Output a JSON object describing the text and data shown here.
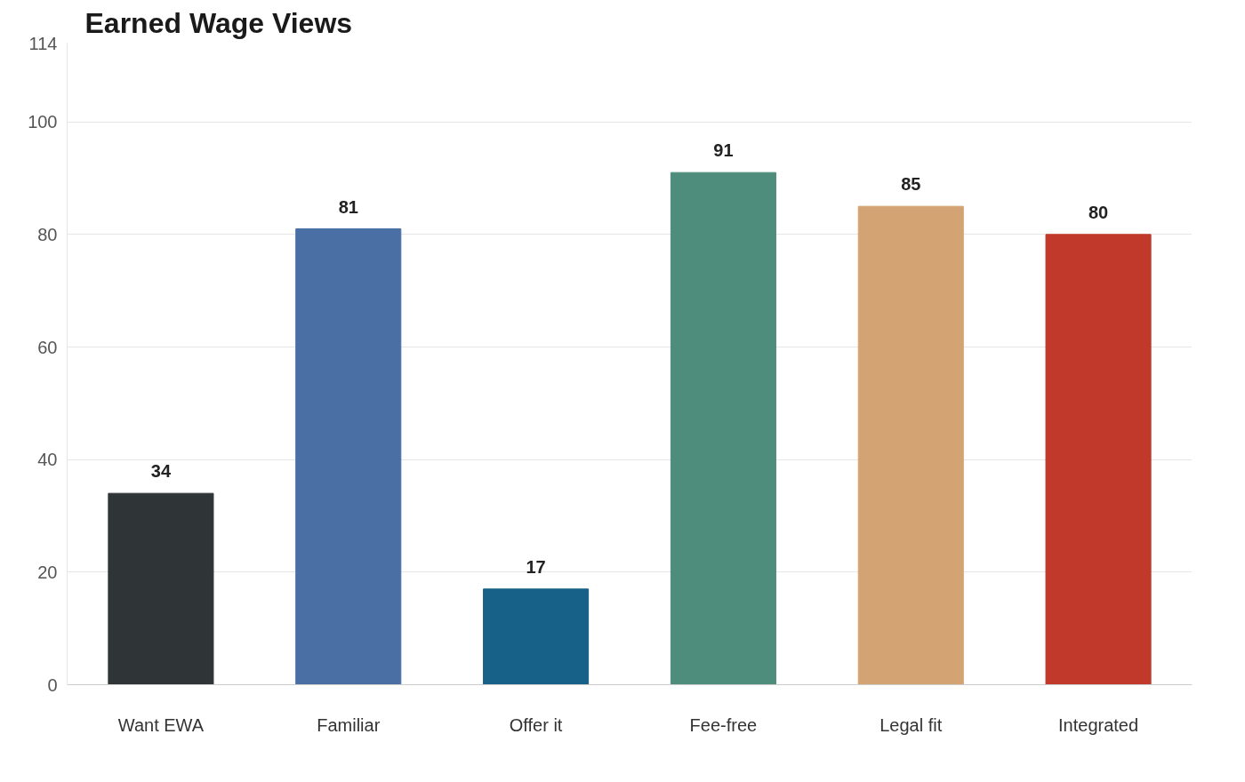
{
  "chart_data": {
    "type": "bar",
    "title": "Earned Wage Views",
    "categories": [
      "Want EWA",
      "Familiar",
      "Offer it",
      "Fee-free",
      "Legal fit",
      "Integrated"
    ],
    "values": [
      34,
      81,
      17,
      91,
      85,
      80
    ],
    "colors": [
      "#2f3437",
      "#4a6fa5",
      "#176087",
      "#4e8d7c",
      "#d4a373",
      "#c0392b"
    ],
    "ylim": [
      0,
      114
    ],
    "yticks": [
      0,
      20,
      40,
      60,
      80,
      100,
      114
    ],
    "grid": "y",
    "data_labels": true
  }
}
